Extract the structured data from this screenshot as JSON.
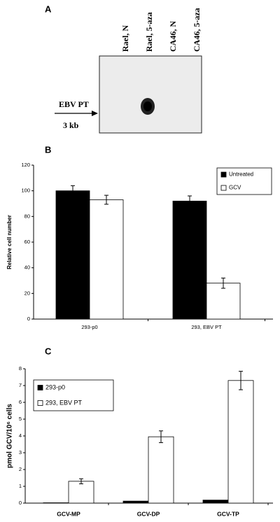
{
  "panel_a": {
    "letter": "A",
    "lanes": [
      "Rael, N",
      "Rael, 5-aza",
      "CA46, N",
      "CA46, 5-aza"
    ],
    "band_label": "EBV PT",
    "size_label": "3 kb"
  },
  "chart_data": [
    {
      "type": "bar",
      "panel": "B",
      "ylabel": "Relative cell number",
      "categories": [
        "293-p0",
        "293, EBV PT"
      ],
      "series": [
        {
          "name": "Untreated",
          "color": "#000000",
          "values": [
            100,
            92
          ],
          "errors": [
            4,
            4
          ]
        },
        {
          "name": "GCV",
          "color": "#ffffff",
          "values": [
            93,
            28
          ],
          "errors": [
            3.5,
            4
          ]
        }
      ],
      "ylim": [
        0,
        120
      ],
      "yticks": [
        0,
        20,
        40,
        60,
        80,
        100,
        120
      ],
      "legend": "top-right"
    },
    {
      "type": "bar",
      "panel": "C",
      "ylabel": "pmol GCV/10⁶ cells",
      "categories": [
        "GCV-MP",
        "GCV-DP",
        "GCV-TP"
      ],
      "series": [
        {
          "name": "293-p0",
          "color": "#000000",
          "values": [
            0.02,
            0.12,
            0.18
          ]
        },
        {
          "name": "293, EBV PT",
          "color": "#ffffff",
          "values": [
            1.3,
            3.95,
            7.3
          ],
          "errors": [
            0.15,
            0.35,
            0.55
          ]
        }
      ],
      "ylim": [
        0,
        8
      ],
      "yticks": [
        0,
        1,
        2,
        3,
        4,
        5,
        6,
        7,
        8
      ],
      "legend": "top-left"
    }
  ]
}
